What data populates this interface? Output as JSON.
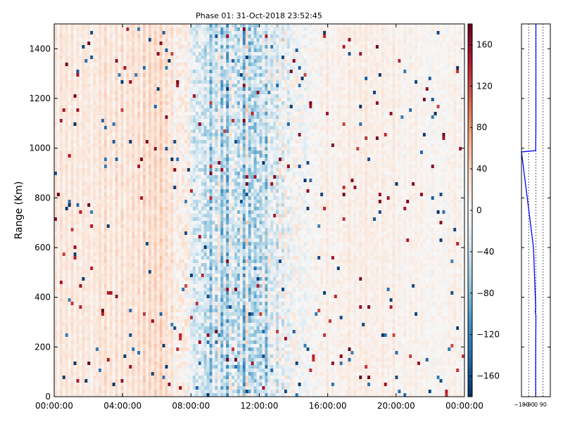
{
  "chart_data": [
    {
      "type": "heatmap",
      "title": "Phase 01: 31-Oct-2018 23:52:45",
      "xlabel": "",
      "ylabel": "Range (Km)",
      "x_tick_labels": [
        "00:00:00",
        "04:00:00",
        "08:00:00",
        "12:00:00",
        "16:00:00",
        "20:00:00",
        "00:00:00"
      ],
      "x_range_hours": [
        0,
        24
      ],
      "y_tick_labels": [
        "0",
        "200",
        "400",
        "600",
        "800",
        "1000",
        "1200",
        "1400"
      ],
      "ylim": [
        0,
        1500
      ],
      "colorbar": {
        "colormap": "RdBu_r",
        "range": [
          -180,
          180
        ],
        "tick_labels": [
          "160",
          "120",
          "80",
          "40",
          "0",
          "−40",
          "−80",
          "−120",
          "−160"
        ],
        "tick_values": [
          160,
          120,
          80,
          40,
          0,
          -40,
          -80,
          -120,
          -160
        ]
      },
      "description_profile": {
        "hours": [
          0,
          2,
          4,
          6,
          7,
          8,
          9,
          10,
          11,
          12,
          13,
          14,
          15,
          16,
          18,
          20,
          22,
          24
        ],
        "mean_value": [
          25,
          25,
          35,
          45,
          25,
          -15,
          -45,
          -55,
          -55,
          -50,
          -35,
          -10,
          5,
          15,
          15,
          15,
          10,
          10
        ],
        "noise": [
          20,
          20,
          20,
          18,
          30,
          60,
          80,
          90,
          95,
          90,
          75,
          50,
          30,
          20,
          18,
          18,
          18,
          18
        ],
        "grid": false
      }
    },
    {
      "type": "line",
      "title": "",
      "xlabel": "",
      "ylabel": "",
      "x_tick_labels": [
        "−180",
        "−90",
        "0",
        "90"
      ],
      "xlim": [
        -180,
        180
      ],
      "ylim": [
        0,
        1500
      ],
      "grid": true,
      "series": [
        {
          "color": "#0000ff",
          "x": [
            -2,
            -3,
            -2,
            0,
            -1,
            -8,
            -3,
            -30,
            -180,
            -2,
            0,
            0,
            0,
            0,
            0
          ],
          "y": [
            0,
            100,
            200,
            320,
            330,
            340,
            360,
            600,
            985,
            990,
            1100,
            1250,
            1400,
            1450,
            1500
          ]
        }
      ]
    }
  ]
}
